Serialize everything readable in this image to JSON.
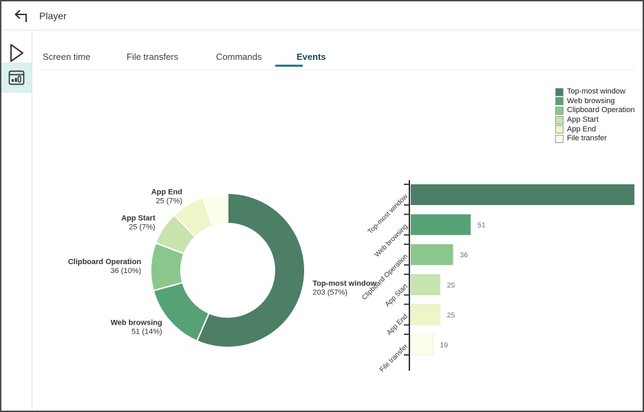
{
  "header": {
    "title": "Player"
  },
  "icons": {
    "back": "back-arrow-icon",
    "play": "play-icon",
    "stats": "bar-chart-window-icon"
  },
  "tabs": {
    "items": [
      {
        "label": "Screen time",
        "active": false
      },
      {
        "label": "File transfers",
        "active": false
      },
      {
        "label": "Commands",
        "active": false
      },
      {
        "label": "Events",
        "active": true
      }
    ]
  },
  "colors": {
    "accent_teal_underline": "#1d7c8d",
    "active_tab_text": "#174a5f",
    "sidebar_active_bg": "#daf1f0",
    "axis": "#2e2e2e",
    "value_label": "#6f6f6f",
    "donut_label_text": "#333333"
  },
  "events": [
    {
      "label": "Top-most window",
      "value": 203,
      "pct": "57%",
      "donut_label": "203 (57%)",
      "show_donut_label": true,
      "show_bar_value": false,
      "color": "#4d7e66"
    },
    {
      "label": "Web browsing",
      "value": 51,
      "pct": "14%",
      "donut_label": "51 (14%)",
      "show_donut_label": true,
      "show_bar_value": true,
      "color": "#56a276"
    },
    {
      "label": "Clipboard Operation",
      "value": 36,
      "pct": "10%",
      "donut_label": "36 (10%)",
      "show_donut_label": true,
      "show_bar_value": true,
      "color": "#8bc78d"
    },
    {
      "label": "App Start",
      "value": 25,
      "pct": "7%",
      "donut_label": "25 (7%)",
      "show_donut_label": true,
      "show_bar_value": true,
      "color": "#c7e3ae"
    },
    {
      "label": "App End",
      "value": 25,
      "pct": "7%",
      "donut_label": "25 (7%)",
      "show_donut_label": true,
      "show_bar_value": true,
      "color": "#eff5c9"
    },
    {
      "label": "File transfer",
      "value": 19,
      "pct": "5%",
      "donut_label": null,
      "show_donut_label": false,
      "show_bar_value": true,
      "color": "#fdfdec"
    }
  ],
  "chart_data": [
    {
      "type": "pie",
      "subtype": "donut",
      "title": "",
      "categories": [
        "Top-most window",
        "Web browsing",
        "Clipboard Operation",
        "App Start",
        "App End",
        "File transfer"
      ],
      "values": [
        203,
        51,
        36,
        25,
        25,
        19
      ],
      "percent_labels": [
        "57%",
        "14%",
        "10%",
        "7%",
        "7%",
        "5%"
      ],
      "colors": [
        "#4d7e66",
        "#56a276",
        "#8bc78d",
        "#c7e3ae",
        "#eff5c9",
        "#fdfdec"
      ],
      "notes": "clockwise from 12 o'clock; File transfer slice has no outside label",
      "legend_position": "top-right"
    },
    {
      "type": "bar",
      "orientation": "horizontal",
      "title": "",
      "categories": [
        "Top-most window",
        "Web browsing",
        "Clipboard Operation",
        "App Start",
        "App End",
        "File transfer"
      ],
      "values": [
        203,
        51,
        36,
        25,
        25,
        19
      ],
      "value_labels": [
        null,
        "51",
        "36",
        "25",
        "25",
        "19"
      ],
      "colors": [
        "#4d7e66",
        "#56a276",
        "#8bc78d",
        "#c7e3ae",
        "#eff5c9",
        "#fdfdec"
      ],
      "notes": "first bar clipped at plot right edge, its value label not shown; category labels rotated 45 degrees",
      "grid": false
    }
  ]
}
